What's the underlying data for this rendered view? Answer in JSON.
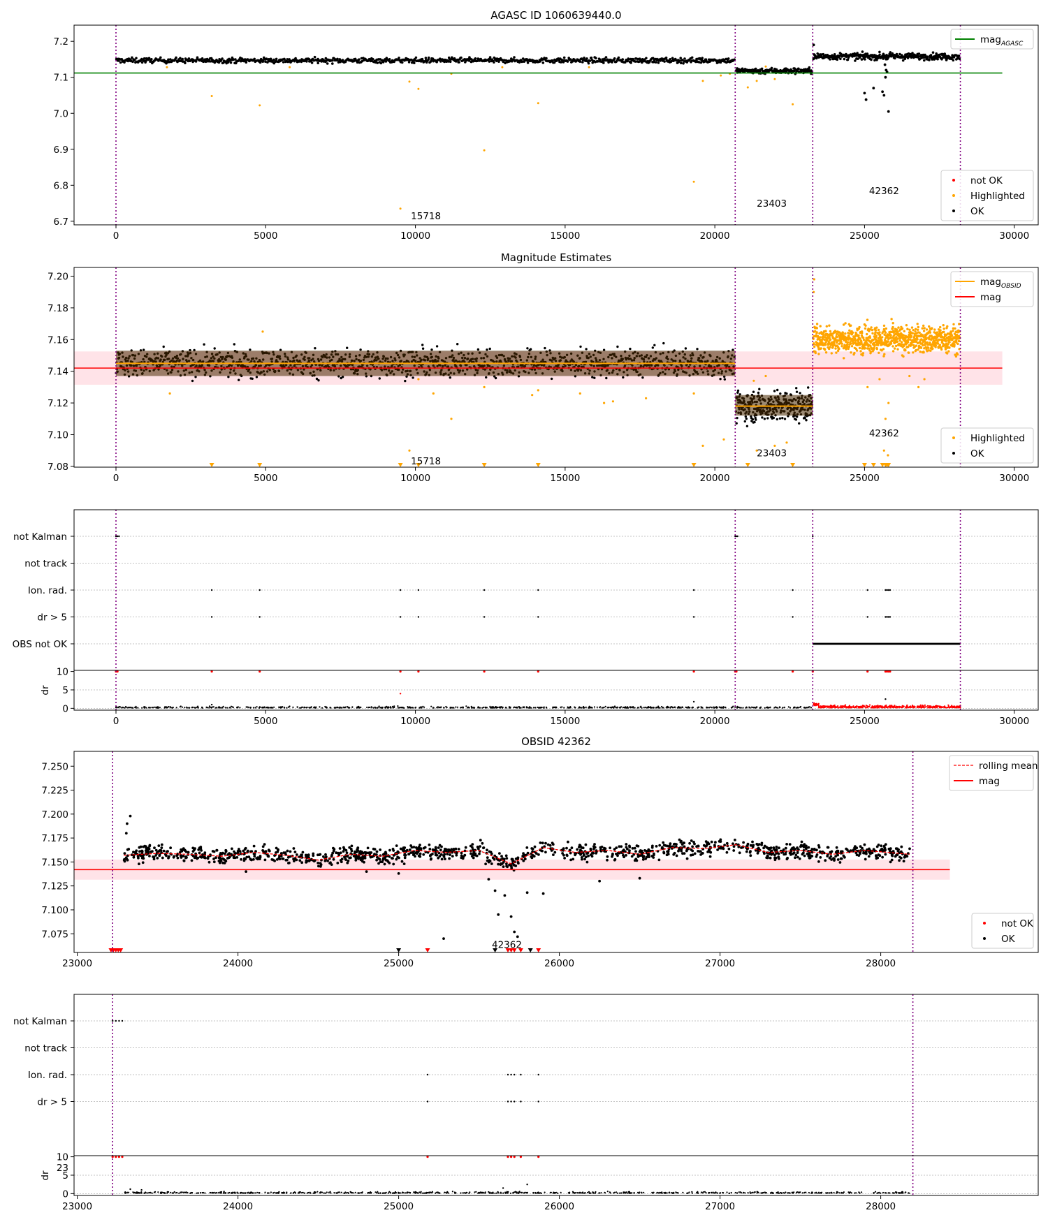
{
  "figure": {
    "background": "#ffffff"
  },
  "colors": {
    "ok": "#000000",
    "not_ok": "#ff0000",
    "highlighted": "#ffa500",
    "agasc_line": "#008000",
    "mean_line": "#ff0000",
    "band": "#ffc0cb",
    "obs_boundary": "#800080",
    "rolling": "#ff0000",
    "grid": "#b0b0b0"
  },
  "chart_data": [
    {
      "id": "agasc",
      "type": "scatter",
      "title": "AGASC ID 1060639440.0",
      "xlim": [
        -1400,
        30800
      ],
      "ylim": [
        6.69,
        7.245
      ],
      "xticks": [
        0,
        5000,
        10000,
        15000,
        20000,
        25000,
        30000
      ],
      "yticks": [
        6.7,
        6.8,
        6.9,
        7.0,
        7.1,
        7.2
      ],
      "ytick_labels": [
        "6.7",
        "6.8",
        "6.9",
        "7.0",
        "7.1",
        "7.2"
      ],
      "vlines": [
        0,
        20680,
        23270,
        28200
      ],
      "hlines": [
        {
          "name": "mag_AGASC",
          "y": 7.112,
          "x": [
            -1400,
            29600
          ],
          "color": "#008000"
        }
      ],
      "segments": [
        {
          "obsid": "15718",
          "x": [
            0,
            20660
          ],
          "y_center": 7.147,
          "y_spread": 0.007,
          "n": 900
        },
        {
          "obsid": "23403",
          "x": [
            20700,
            23250
          ],
          "y_center": 7.118,
          "y_spread": 0.008,
          "n": 160
        },
        {
          "obsid": "42362",
          "x": [
            23290,
            28180
          ],
          "y_center": 7.158,
          "y_spread": 0.009,
          "n": 320
        }
      ],
      "highlighted_points": [
        [
          1700,
          7.128
        ],
        [
          3200,
          7.048
        ],
        [
          4800,
          7.022
        ],
        [
          5800,
          7.128
        ],
        [
          9500,
          6.735
        ],
        [
          9800,
          7.088
        ],
        [
          10100,
          7.068
        ],
        [
          11200,
          7.11
        ],
        [
          12300,
          6.897
        ],
        [
          12900,
          7.128
        ],
        [
          14100,
          7.028
        ],
        [
          15800,
          7.128
        ],
        [
          19300,
          6.81
        ],
        [
          19600,
          7.09
        ],
        [
          20200,
          7.105
        ],
        [
          20500,
          7.11
        ],
        [
          21100,
          7.072
        ],
        [
          21400,
          7.09
        ],
        [
          22000,
          7.095
        ],
        [
          22600,
          7.025
        ],
        [
          21700,
          7.13
        ]
      ],
      "ok_outliers": [
        [
          25000,
          7.056
        ],
        [
          25050,
          7.038
        ],
        [
          25300,
          7.07
        ],
        [
          25600,
          7.06
        ],
        [
          25650,
          7.05
        ],
        [
          25700,
          7.1
        ],
        [
          25750,
          7.115
        ],
        [
          25800,
          7.005
        ],
        [
          25720,
          7.12
        ],
        [
          25680,
          7.135
        ],
        [
          23300,
          7.19
        ]
      ],
      "labels": [
        {
          "text": "15718",
          "x": 9850,
          "y": 6.715
        },
        {
          "text": "23403",
          "x": 21400,
          "y": 6.75
        },
        {
          "text": "42362",
          "x": 25150,
          "y": 6.785
        }
      ],
      "legends": [
        {
          "position": "top-right",
          "entries": [
            {
              "label": "mag",
              "sub": "AGASC",
              "kind": "line",
              "color": "#008000"
            }
          ]
        },
        {
          "position": "bottom-right",
          "entries": [
            {
              "label": "not OK",
              "kind": "dot",
              "color": "#ff0000"
            },
            {
              "label": "Highlighted",
              "kind": "dot",
              "color": "#ffa500"
            },
            {
              "label": "OK",
              "kind": "dot",
              "color": "#000000"
            }
          ]
        }
      ]
    },
    {
      "id": "estimates",
      "type": "scatter",
      "title": "Magnitude Estimates",
      "xlim": [
        -1400,
        30800
      ],
      "ylim": [
        7.0795,
        7.2055
      ],
      "xticks": [
        0,
        5000,
        10000,
        15000,
        20000,
        25000,
        30000
      ],
      "yticks": [
        7.08,
        7.1,
        7.12,
        7.14,
        7.16,
        7.18,
        7.2
      ],
      "ytick_labels": [
        "7.08",
        "7.10",
        "7.12",
        "7.14",
        "7.16",
        "7.18",
        "7.20"
      ],
      "vlines": [
        0,
        20680,
        23270,
        28200
      ],
      "mean": {
        "name": "mag",
        "y": 7.142,
        "band": [
          7.1315,
          7.1525
        ],
        "x": [
          -1400,
          29600
        ]
      },
      "obsid_means": [
        {
          "x": [
            0,
            20680
          ],
          "y": 7.145,
          "band": [
            7.137,
            7.153
          ]
        },
        {
          "x": [
            20680,
            23270
          ],
          "y": 7.118,
          "band": [
            7.112,
            7.125
          ]
        }
      ],
      "segments": [
        {
          "obsid": "15718",
          "x": [
            0,
            20660
          ],
          "y_center": 7.145,
          "y_spread": 0.0085,
          "n": 1400,
          "color": "#000000"
        },
        {
          "obsid": "23403",
          "x": [
            20700,
            23250
          ],
          "y_center": 7.118,
          "y_spread": 0.0095,
          "n": 320,
          "color": "#000000"
        },
        {
          "obsid": "42362",
          "x": [
            23290,
            28180
          ],
          "y_center": 7.16,
          "y_spread": 0.0085,
          "n": 900,
          "color": "#ffa500"
        }
      ],
      "highlighted_points": [
        [
          1800,
          7.126
        ],
        [
          4900,
          7.165
        ],
        [
          9800,
          7.09
        ],
        [
          10100,
          7.135
        ],
        [
          10600,
          7.126
        ],
        [
          11200,
          7.11
        ],
        [
          12300,
          7.13
        ],
        [
          13900,
          7.125
        ],
        [
          14100,
          7.128
        ],
        [
          15500,
          7.126
        ],
        [
          16300,
          7.12
        ],
        [
          16600,
          7.121
        ],
        [
          17700,
          7.123
        ],
        [
          19300,
          7.126
        ],
        [
          19600,
          7.093
        ],
        [
          20300,
          7.097
        ],
        [
          21300,
          7.134
        ],
        [
          21400,
          7.09
        ],
        [
          21700,
          7.137
        ],
        [
          22000,
          7.093
        ],
        [
          22400,
          7.095
        ],
        [
          23300,
          7.19
        ],
        [
          23320,
          7.198
        ],
        [
          25100,
          7.13
        ],
        [
          25500,
          7.135
        ],
        [
          25700,
          7.11
        ],
        [
          25800,
          7.12
        ],
        [
          25650,
          7.09
        ],
        [
          25780,
          7.087
        ],
        [
          26500,
          7.137
        ],
        [
          26800,
          7.13
        ],
        [
          27000,
          7.135
        ]
      ],
      "censored_points": [
        3200,
        4800,
        9500,
        10100,
        12300,
        14100,
        19300,
        21100,
        22600,
        25000,
        25300,
        25600,
        25700,
        25750,
        25800
      ],
      "labels": [
        {
          "text": "15718",
          "x": 9850,
          "y": 7.0835
        },
        {
          "text": "23403",
          "x": 21400,
          "y": 7.0885
        },
        {
          "text": "42362",
          "x": 25150,
          "y": 7.101
        }
      ],
      "legends": [
        {
          "position": "top-right",
          "entries": [
            {
              "label": "mag",
              "sub": "OBSID",
              "kind": "line",
              "color": "#ffa500"
            },
            {
              "label": "mag",
              "kind": "line",
              "color": "#ff0000"
            }
          ]
        },
        {
          "position": "bottom-right",
          "entries": [
            {
              "label": "Highlighted",
              "kind": "dot",
              "color": "#ffa500"
            },
            {
              "label": "OK",
              "kind": "dot",
              "color": "#000000"
            }
          ]
        }
      ]
    },
    {
      "id": "flags_all",
      "type": "scatter",
      "xlim": [
        -1400,
        30800
      ],
      "xticks": [
        0,
        5000,
        10000,
        15000,
        20000,
        25000,
        30000
      ],
      "vlines": [
        0,
        20680,
        23270,
        28200
      ],
      "flag_rows": [
        "not Kalman",
        "not track",
        "Ion. rad.",
        "dr > 5",
        "OBS not OK"
      ],
      "flag_points": {
        "not Kalman": [
          0,
          50,
          100,
          20680,
          20720,
          20760,
          23270
        ],
        "not track": [],
        "Ion. rad.": [
          3200,
          4800,
          9500,
          10100,
          12300,
          14100,
          19300,
          22600,
          25100,
          25700,
          25750,
          25800,
          25850
        ],
        "dr > 5": [
          3200,
          4800,
          9500,
          10100,
          12300,
          14100,
          19300,
          22600,
          25100,
          25700,
          25750,
          25800,
          25850
        ],
        "OBS not OK": {
          "range": [
            23270,
            28200
          ]
        }
      },
      "dr": {
        "ylim": [
          -0.5,
          10.3
        ],
        "yticks": [
          0,
          5,
          10
        ],
        "ylabel": "dr",
        "ok_range": [
          0,
          23260
        ],
        "notok_range": [
          23270,
          28200
        ],
        "red_at_10": [
          0,
          50,
          3200,
          4800,
          9500,
          10100,
          12300,
          14100,
          19300,
          20680,
          20720,
          22600,
          23270,
          25100,
          25700,
          25750,
          25800,
          25850
        ],
        "extra_points": [
          [
            9500,
            4
          ],
          [
            19300,
            1.8
          ],
          [
            25700,
            2.5
          ],
          [
            3200,
            1
          ]
        ]
      }
    },
    {
      "id": "obsid",
      "type": "scatter",
      "title": "OBSID 42362",
      "xlim": [
        22980,
        28980
      ],
      "ylim": [
        7.0555,
        7.2655
      ],
      "xticks": [
        23000,
        24000,
        25000,
        26000,
        27000,
        28000
      ],
      "yticks": [
        7.075,
        7.1,
        7.125,
        7.15,
        7.175,
        7.2,
        7.225,
        7.25
      ],
      "ytick_labels": [
        "7.075",
        "7.100",
        "7.125",
        "7.150",
        "7.175",
        "7.200",
        "7.225",
        "7.250"
      ],
      "vlines": [
        23220,
        28200
      ],
      "mean": {
        "name": "mag",
        "y": 7.142,
        "band": [
          7.1315,
          7.1525
        ],
        "x": [
          22980,
          28430
        ]
      },
      "series_x": [
        23290,
        28180
      ],
      "rolling_mean": [
        [
          23290,
          7.157
        ],
        [
          23500,
          7.159
        ],
        [
          23700,
          7.158
        ],
        [
          23900,
          7.156
        ],
        [
          24100,
          7.16
        ],
        [
          24300,
          7.157
        ],
        [
          24500,
          7.152
        ],
        [
          24700,
          7.158
        ],
        [
          24900,
          7.156
        ],
        [
          25100,
          7.162
        ],
        [
          25300,
          7.16
        ],
        [
          25500,
          7.162
        ],
        [
          25700,
          7.148
        ],
        [
          25900,
          7.165
        ],
        [
          26100,
          7.16
        ],
        [
          26300,
          7.162
        ],
        [
          26500,
          7.158
        ],
        [
          26700,
          7.165
        ],
        [
          26900,
          7.164
        ],
        [
          27100,
          7.168
        ],
        [
          27300,
          7.16
        ],
        [
          27500,
          7.162
        ],
        [
          27700,
          7.158
        ],
        [
          27900,
          7.162
        ],
        [
          28180,
          7.158
        ]
      ],
      "ok_outliers": [
        [
          23310,
          7.19
        ],
        [
          23330,
          7.198
        ],
        [
          23305,
          7.18
        ],
        [
          25280,
          7.07
        ],
        [
          25560,
          7.132
        ],
        [
          25600,
          7.12
        ],
        [
          25620,
          7.095
        ],
        [
          25660,
          7.115
        ],
        [
          25700,
          7.093
        ],
        [
          25720,
          7.077
        ],
        [
          25740,
          7.072
        ],
        [
          25800,
          7.118
        ],
        [
          25900,
          7.117
        ],
        [
          26250,
          7.13
        ],
        [
          26500,
          7.133
        ],
        [
          24050,
          7.14
        ],
        [
          24800,
          7.14
        ],
        [
          25000,
          7.138
        ]
      ],
      "censored_red": [
        23210,
        23225,
        23240,
        23255,
        23270,
        25180,
        25680,
        25700,
        25720,
        25760,
        25870
      ],
      "censored_black": [
        25000,
        25600,
        25820
      ],
      "labels": [
        {
          "text": "42362",
          "x": 25580,
          "y": 7.064
        }
      ],
      "legends": [
        {
          "position": "top-right",
          "entries": [
            {
              "label": "rolling mean",
              "kind": "dashed",
              "color": "#ff0000"
            },
            {
              "label": "mag",
              "kind": "line",
              "color": "#ff0000"
            }
          ]
        },
        {
          "position": "bottom-right",
          "entries": [
            {
              "label": "not OK",
              "kind": "dot",
              "color": "#ff0000"
            },
            {
              "label": "OK",
              "kind": "dot",
              "color": "#000000"
            }
          ]
        }
      ]
    },
    {
      "id": "flags_obsid",
      "type": "scatter",
      "xlim": [
        22980,
        28980
      ],
      "xticks": [
        23000,
        24000,
        25000,
        26000,
        27000,
        28000
      ],
      "vlines": [
        23220,
        28200
      ],
      "flag_rows": [
        "not Kalman",
        "not track",
        "Ion. rad.",
        "dr > 5"
      ],
      "flag_points": {
        "not Kalman": [
          23220,
          23240,
          23260,
          23280
        ],
        "not track": [],
        "Ion. rad.": [
          25180,
          25680,
          25700,
          25720,
          25760,
          25870
        ],
        "dr > 5": [
          25180,
          25680,
          25700,
          25720,
          25760,
          25870
        ]
      },
      "dr": {
        "ylim": [
          -0.5,
          10.3
        ],
        "yticks": [
          0,
          5,
          10
        ],
        "ylabel": "dr",
        "ok_range": [
          23290,
          28180
        ],
        "red_at_10": [
          23220,
          23240,
          23260,
          23280,
          25180,
          25680,
          25700,
          25720,
          25760,
          25870
        ],
        "extra_points": [
          [
            23330,
            1.2
          ],
          [
            23400,
            1.0
          ],
          [
            25650,
            1.5
          ],
          [
            25800,
            2.5
          ]
        ]
      },
      "stray_tick_label": "23"
    }
  ]
}
